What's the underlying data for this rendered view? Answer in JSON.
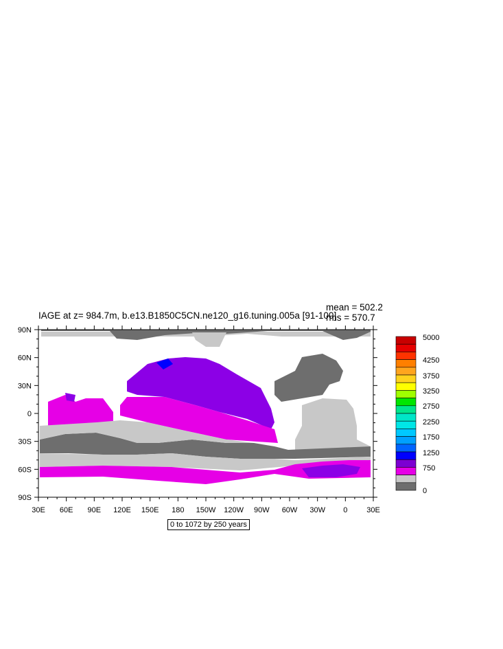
{
  "title": "IAGE at z= 984.7m, b.e13.B1850C5CN.ne120_g16.tuning.005a [91-100]",
  "stats": {
    "mean": "mean = 502.2",
    "rms": "rms = 570.7"
  },
  "subtitle": "0 to 1072 by 250 years",
  "map": {
    "projection": "cylindrical equidistant",
    "center_lon": 210,
    "lat_range": [
      -90,
      90
    ],
    "lon_range": [
      30,
      390
    ],
    "x_ticks": [
      "30E",
      "60E",
      "90E",
      "120E",
      "150E",
      "180",
      "150W",
      "120W",
      "90W",
      "60W",
      "30W",
      "0",
      "30E"
    ],
    "y_ticks": [
      "90N",
      "60N",
      "30N",
      "0",
      "30S",
      "60S",
      "90S"
    ]
  },
  "colorbar": {
    "labels": [
      "5000",
      "4250",
      "3750",
      "3250",
      "2750",
      "2250",
      "1750",
      "1250",
      "750",
      "0"
    ],
    "colors": [
      "#c80000",
      "#e60000",
      "#ff3300",
      "#ff7f00",
      "#ffa51e",
      "#ffd21e",
      "#ffff00",
      "#a0ff00",
      "#00e600",
      "#00e68c",
      "#00e6c8",
      "#00e6e6",
      "#00c8ff",
      "#00a0ff",
      "#0064ff",
      "#0000ff",
      "#7d00d2",
      "#e600e6",
      "#c8c8c8",
      "#6e6e6e"
    ]
  },
  "fields": {
    "colors": {
      "dark_gray": "#6e6e6e",
      "light_gray": "#c8c8c8",
      "magenta": "#e600e6",
      "purple": "#8c00e6",
      "blue": "#0000ff"
    }
  }
}
